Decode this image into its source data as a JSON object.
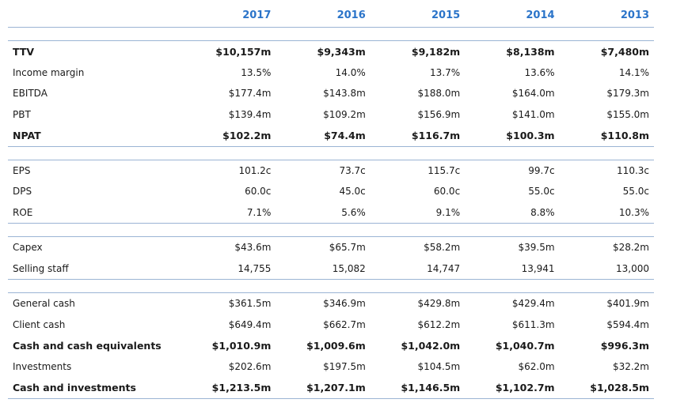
{
  "years": [
    "2017",
    "2016",
    "2015",
    "2014",
    "2013"
  ],
  "sections": [
    {
      "rows": [
        {
          "label": "TTV",
          "bold": true,
          "values": [
            "$10,157m",
            "$9,343m",
            "$9,182m",
            "$8,138m",
            "$7,480m"
          ]
        },
        {
          "label": "Income margin",
          "bold": false,
          "values": [
            "13.5%",
            "14.0%",
            "13.7%",
            "13.6%",
            "14.1%"
          ]
        },
        {
          "label": "EBITDA",
          "bold": false,
          "values": [
            "$177.4m",
            "$143.8m",
            "$188.0m",
            "$164.0m",
            "$179.3m"
          ]
        },
        {
          "label": "PBT",
          "bold": false,
          "values": [
            "$139.4m",
            "$109.2m",
            "$156.9m",
            "$141.0m",
            "$155.0m"
          ]
        },
        {
          "label": "NPAT",
          "bold": true,
          "values": [
            "$102.2m",
            "$74.4m",
            "$116.7m",
            "$100.3m",
            "$110.8m"
          ]
        }
      ]
    },
    {
      "rows": [
        {
          "label": "EPS",
          "bold": false,
          "values": [
            "101.2c",
            "73.7c",
            "115.7c",
            "99.7c",
            "110.3c"
          ]
        },
        {
          "label": "DPS",
          "bold": false,
          "values": [
            "60.0c",
            "45.0c",
            "60.0c",
            "55.0c",
            "55.0c"
          ]
        },
        {
          "label": "ROE",
          "bold": false,
          "values": [
            "7.1%",
            "5.6%",
            "9.1%",
            "8.8%",
            "10.3%"
          ]
        }
      ]
    },
    {
      "rows": [
        {
          "label": "Capex",
          "bold": false,
          "values": [
            "$43.6m",
            "$65.7m",
            "$58.2m",
            "$39.5m",
            "$28.2m"
          ]
        },
        {
          "label": "Selling staff",
          "bold": false,
          "values": [
            "14,755",
            "15,082",
            "14,747",
            "13,941",
            "13,000"
          ]
        }
      ]
    },
    {
      "rows": [
        {
          "label": "General cash",
          "bold": false,
          "values": [
            "$361.5m",
            "$346.9m",
            "$429.8m",
            "$429.4m",
            "$401.9m"
          ]
        },
        {
          "label": "Client cash",
          "bold": false,
          "values": [
            "$649.4m",
            "$662.7m",
            "$612.2m",
            "$611.3m",
            "$594.4m"
          ]
        },
        {
          "label": "Cash and cash equivalents",
          "bold": true,
          "values": [
            "$1,010.9m",
            "$1,009.6m",
            "$1,042.0m",
            "$1,040.7m",
            "$996.3m"
          ]
        },
        {
          "label": "Investments",
          "bold": false,
          "values": [
            "$202.6m",
            "$197.5m",
            "$104.5m",
            "$62.0m",
            "$32.2m"
          ]
        },
        {
          "label": "Cash and investments",
          "bold": true,
          "values": [
            "$1,213.5m",
            "$1,207.1m",
            "$1,146.5m",
            "$1,102.7m",
            "$1,028.5m"
          ]
        }
      ]
    }
  ]
}
